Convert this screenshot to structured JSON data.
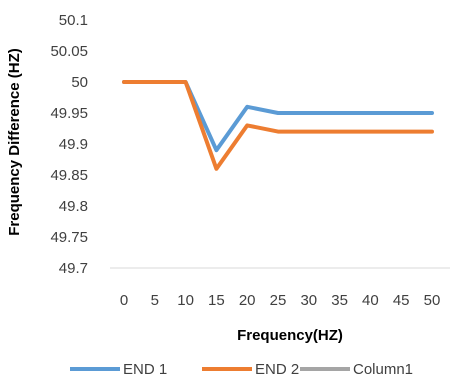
{
  "chart_data": {
    "type": "line",
    "title": "",
    "xlabel": "Frequency(HZ)",
    "ylabel": "Frequency Difference (HZ)",
    "x": [
      0,
      5,
      10,
      15,
      20,
      25,
      30,
      35,
      40,
      45,
      50
    ],
    "x_tick_labels": [
      "0",
      "5",
      "10",
      "15",
      "20",
      "25",
      "30",
      "35",
      "40",
      "45",
      "50"
    ],
    "ylim": [
      49.7,
      50.1
    ],
    "y_tick_labels": [
      "50.1",
      "50.05",
      "50",
      "49.95",
      "49.9",
      "49.85",
      "49.8",
      "49.75",
      "49.7"
    ],
    "grid": false,
    "legend_position": "bottom",
    "series": [
      {
        "name": "END 1",
        "color": "#5B9BD5",
        "points": [
          [
            0,
            50
          ],
          [
            10,
            50
          ],
          [
            15,
            49.89
          ],
          [
            20,
            49.96
          ],
          [
            25,
            49.95
          ],
          [
            30,
            49.95
          ],
          [
            35,
            49.95
          ],
          [
            40,
            49.95
          ],
          [
            45,
            49.95
          ],
          [
            50,
            49.95
          ]
        ]
      },
      {
        "name": "END 2",
        "color": "#ED7D31",
        "points": [
          [
            0,
            50
          ],
          [
            10,
            50
          ],
          [
            15,
            49.86
          ],
          [
            20,
            49.93
          ],
          [
            25,
            49.92
          ],
          [
            30,
            49.92
          ],
          [
            35,
            49.92
          ],
          [
            40,
            49.92
          ],
          [
            45,
            49.92
          ],
          [
            50,
            49.92
          ]
        ]
      },
      {
        "name": "Column1",
        "color": "#A5A5A5",
        "points": []
      }
    ]
  }
}
